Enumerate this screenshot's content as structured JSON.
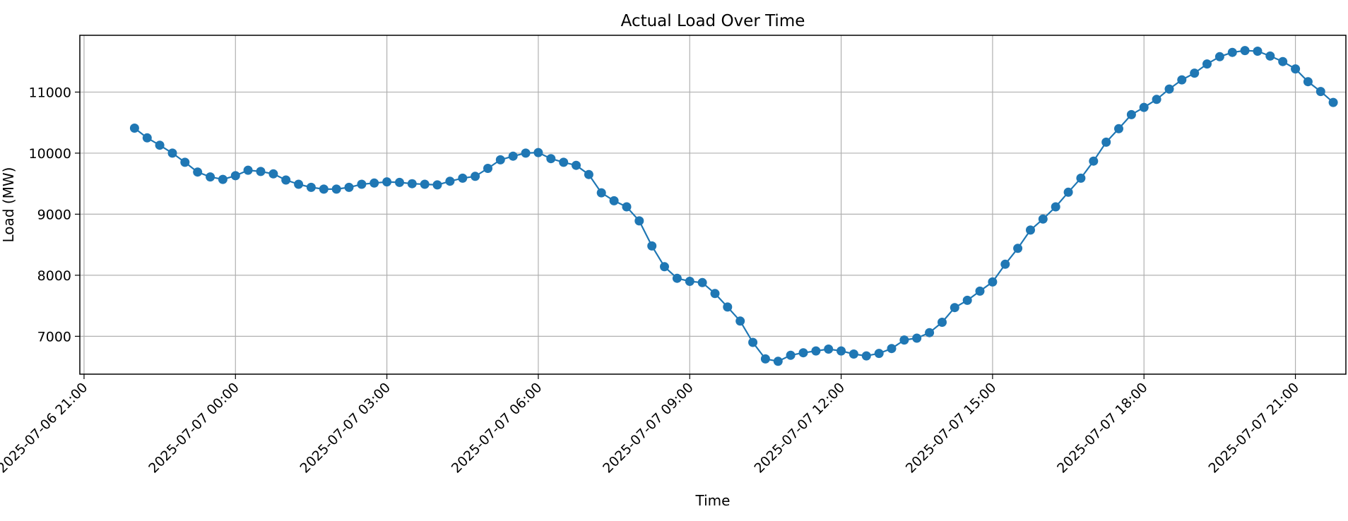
{
  "chart_data": {
    "type": "line",
    "title": "Actual Load Over Time",
    "xlabel": "Time",
    "ylabel": "Load (MW)",
    "grid": true,
    "legend": "none",
    "xlim": [
      "2025-07-06 20:55",
      "2025-07-07 22:00"
    ],
    "ylim": [
      6380,
      11930
    ],
    "x_ticks": [
      "2025-07-06 21:00",
      "2025-07-07 00:00",
      "2025-07-07 03:00",
      "2025-07-07 06:00",
      "2025-07-07 09:00",
      "2025-07-07 12:00",
      "2025-07-07 15:00",
      "2025-07-07 18:00",
      "2025-07-07 21:00"
    ],
    "y_ticks": [
      7000,
      8000,
      9000,
      10000,
      11000
    ],
    "series": [
      {
        "color": "#1f77b4",
        "x": [
          "2025-07-06 22:00",
          "2025-07-06 22:15",
          "2025-07-06 22:30",
          "2025-07-06 22:45",
          "2025-07-06 23:00",
          "2025-07-06 23:15",
          "2025-07-06 23:30",
          "2025-07-06 23:45",
          "2025-07-07 00:00",
          "2025-07-07 00:15",
          "2025-07-07 00:30",
          "2025-07-07 00:45",
          "2025-07-07 01:00",
          "2025-07-07 01:15",
          "2025-07-07 01:30",
          "2025-07-07 01:45",
          "2025-07-07 02:00",
          "2025-07-07 02:15",
          "2025-07-07 02:30",
          "2025-07-07 02:45",
          "2025-07-07 03:00",
          "2025-07-07 03:15",
          "2025-07-07 03:30",
          "2025-07-07 03:45",
          "2025-07-07 04:00",
          "2025-07-07 04:15",
          "2025-07-07 04:30",
          "2025-07-07 04:45",
          "2025-07-07 05:00",
          "2025-07-07 05:15",
          "2025-07-07 05:30",
          "2025-07-07 05:45",
          "2025-07-07 06:00",
          "2025-07-07 06:15",
          "2025-07-07 06:30",
          "2025-07-07 06:45",
          "2025-07-07 07:00",
          "2025-07-07 07:15",
          "2025-07-07 07:30",
          "2025-07-07 07:45",
          "2025-07-07 08:00",
          "2025-07-07 08:15",
          "2025-07-07 08:30",
          "2025-07-07 08:45",
          "2025-07-07 09:00",
          "2025-07-07 09:15",
          "2025-07-07 09:30",
          "2025-07-07 09:45",
          "2025-07-07 10:00",
          "2025-07-07 10:15",
          "2025-07-07 10:30",
          "2025-07-07 10:45",
          "2025-07-07 11:00",
          "2025-07-07 11:15",
          "2025-07-07 11:30",
          "2025-07-07 11:45",
          "2025-07-07 12:00",
          "2025-07-07 12:15",
          "2025-07-07 12:30",
          "2025-07-07 12:45",
          "2025-07-07 13:00",
          "2025-07-07 13:15",
          "2025-07-07 13:30",
          "2025-07-07 13:45",
          "2025-07-07 14:00",
          "2025-07-07 14:15",
          "2025-07-07 14:30",
          "2025-07-07 14:45",
          "2025-07-07 15:00",
          "2025-07-07 15:15",
          "2025-07-07 15:30",
          "2025-07-07 15:45",
          "2025-07-07 16:00",
          "2025-07-07 16:15",
          "2025-07-07 16:30",
          "2025-07-07 16:45",
          "2025-07-07 17:00",
          "2025-07-07 17:15",
          "2025-07-07 17:30",
          "2025-07-07 17:45",
          "2025-07-07 18:00",
          "2025-07-07 18:15",
          "2025-07-07 18:30",
          "2025-07-07 18:45",
          "2025-07-07 19:00",
          "2025-07-07 19:15",
          "2025-07-07 19:30",
          "2025-07-07 19:45",
          "2025-07-07 20:00",
          "2025-07-07 20:15",
          "2025-07-07 20:30",
          "2025-07-07 20:45",
          "2025-07-07 21:00",
          "2025-07-07 21:15",
          "2025-07-07 21:30",
          "2025-07-07 21:45"
        ],
        "values": [
          10410,
          10250,
          10130,
          10000,
          9850,
          9690,
          9610,
          9570,
          9630,
          9720,
          9700,
          9660,
          9560,
          9490,
          9440,
          9410,
          9410,
          9440,
          9490,
          9510,
          9530,
          9520,
          9500,
          9490,
          9480,
          9540,
          9590,
          9620,
          9750,
          9890,
          9950,
          10000,
          10010,
          9910,
          9850,
          9800,
          9650,
          9350,
          9220,
          9120,
          8890,
          8480,
          8140,
          7950,
          7900,
          7880,
          7700,
          7480,
          7250,
          6900,
          6630,
          6590,
          6690,
          6730,
          6760,
          6790,
          6760,
          6710,
          6680,
          6720,
          6800,
          6940,
          6970,
          7060,
          7230,
          7470,
          7590,
          7740,
          7890,
          8180,
          8440,
          8740,
          8920,
          9120,
          9360,
          9590,
          9870,
          10180,
          10400,
          10630,
          10750,
          10880,
          11050,
          11200,
          11310,
          11460,
          11580,
          11650,
          11680,
          11670,
          11590,
          11500,
          11380,
          11170,
          11010,
          10830
        ]
      }
    ]
  }
}
